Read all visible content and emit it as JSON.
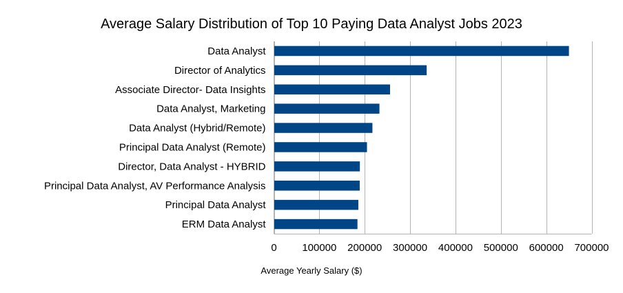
{
  "chart_data": {
    "type": "bar",
    "orientation": "horizontal",
    "title": "Average Salary Distribution of Top 10 Paying Data Analyst Jobs 2023",
    "xlabel": "Average Yearly Salary ($)",
    "ylabel": "",
    "categories": [
      "Data Analyst",
      "Director of Analytics",
      "Associate Director- Data Insights",
      "Data Analyst, Marketing",
      "Data Analyst (Hybrid/Remote)",
      "Principal Data Analyst (Remote)",
      "Director, Data Analyst - HYBRID",
      "Principal Data Analyst, AV Performance Analysis",
      "Principal Data Analyst",
      "ERM Data Analyst"
    ],
    "values": [
      650000,
      336500,
      255830,
      232423,
      217000,
      205000,
      189309,
      189000,
      186000,
      184000
    ],
    "xlim": [
      0,
      700000
    ],
    "xticks": [
      0,
      100000,
      200000,
      300000,
      400000,
      500000,
      600000,
      700000
    ],
    "grid": "vertical",
    "legend": "none",
    "bar_color": "#004586",
    "grid_color": "#b3b3b3"
  }
}
